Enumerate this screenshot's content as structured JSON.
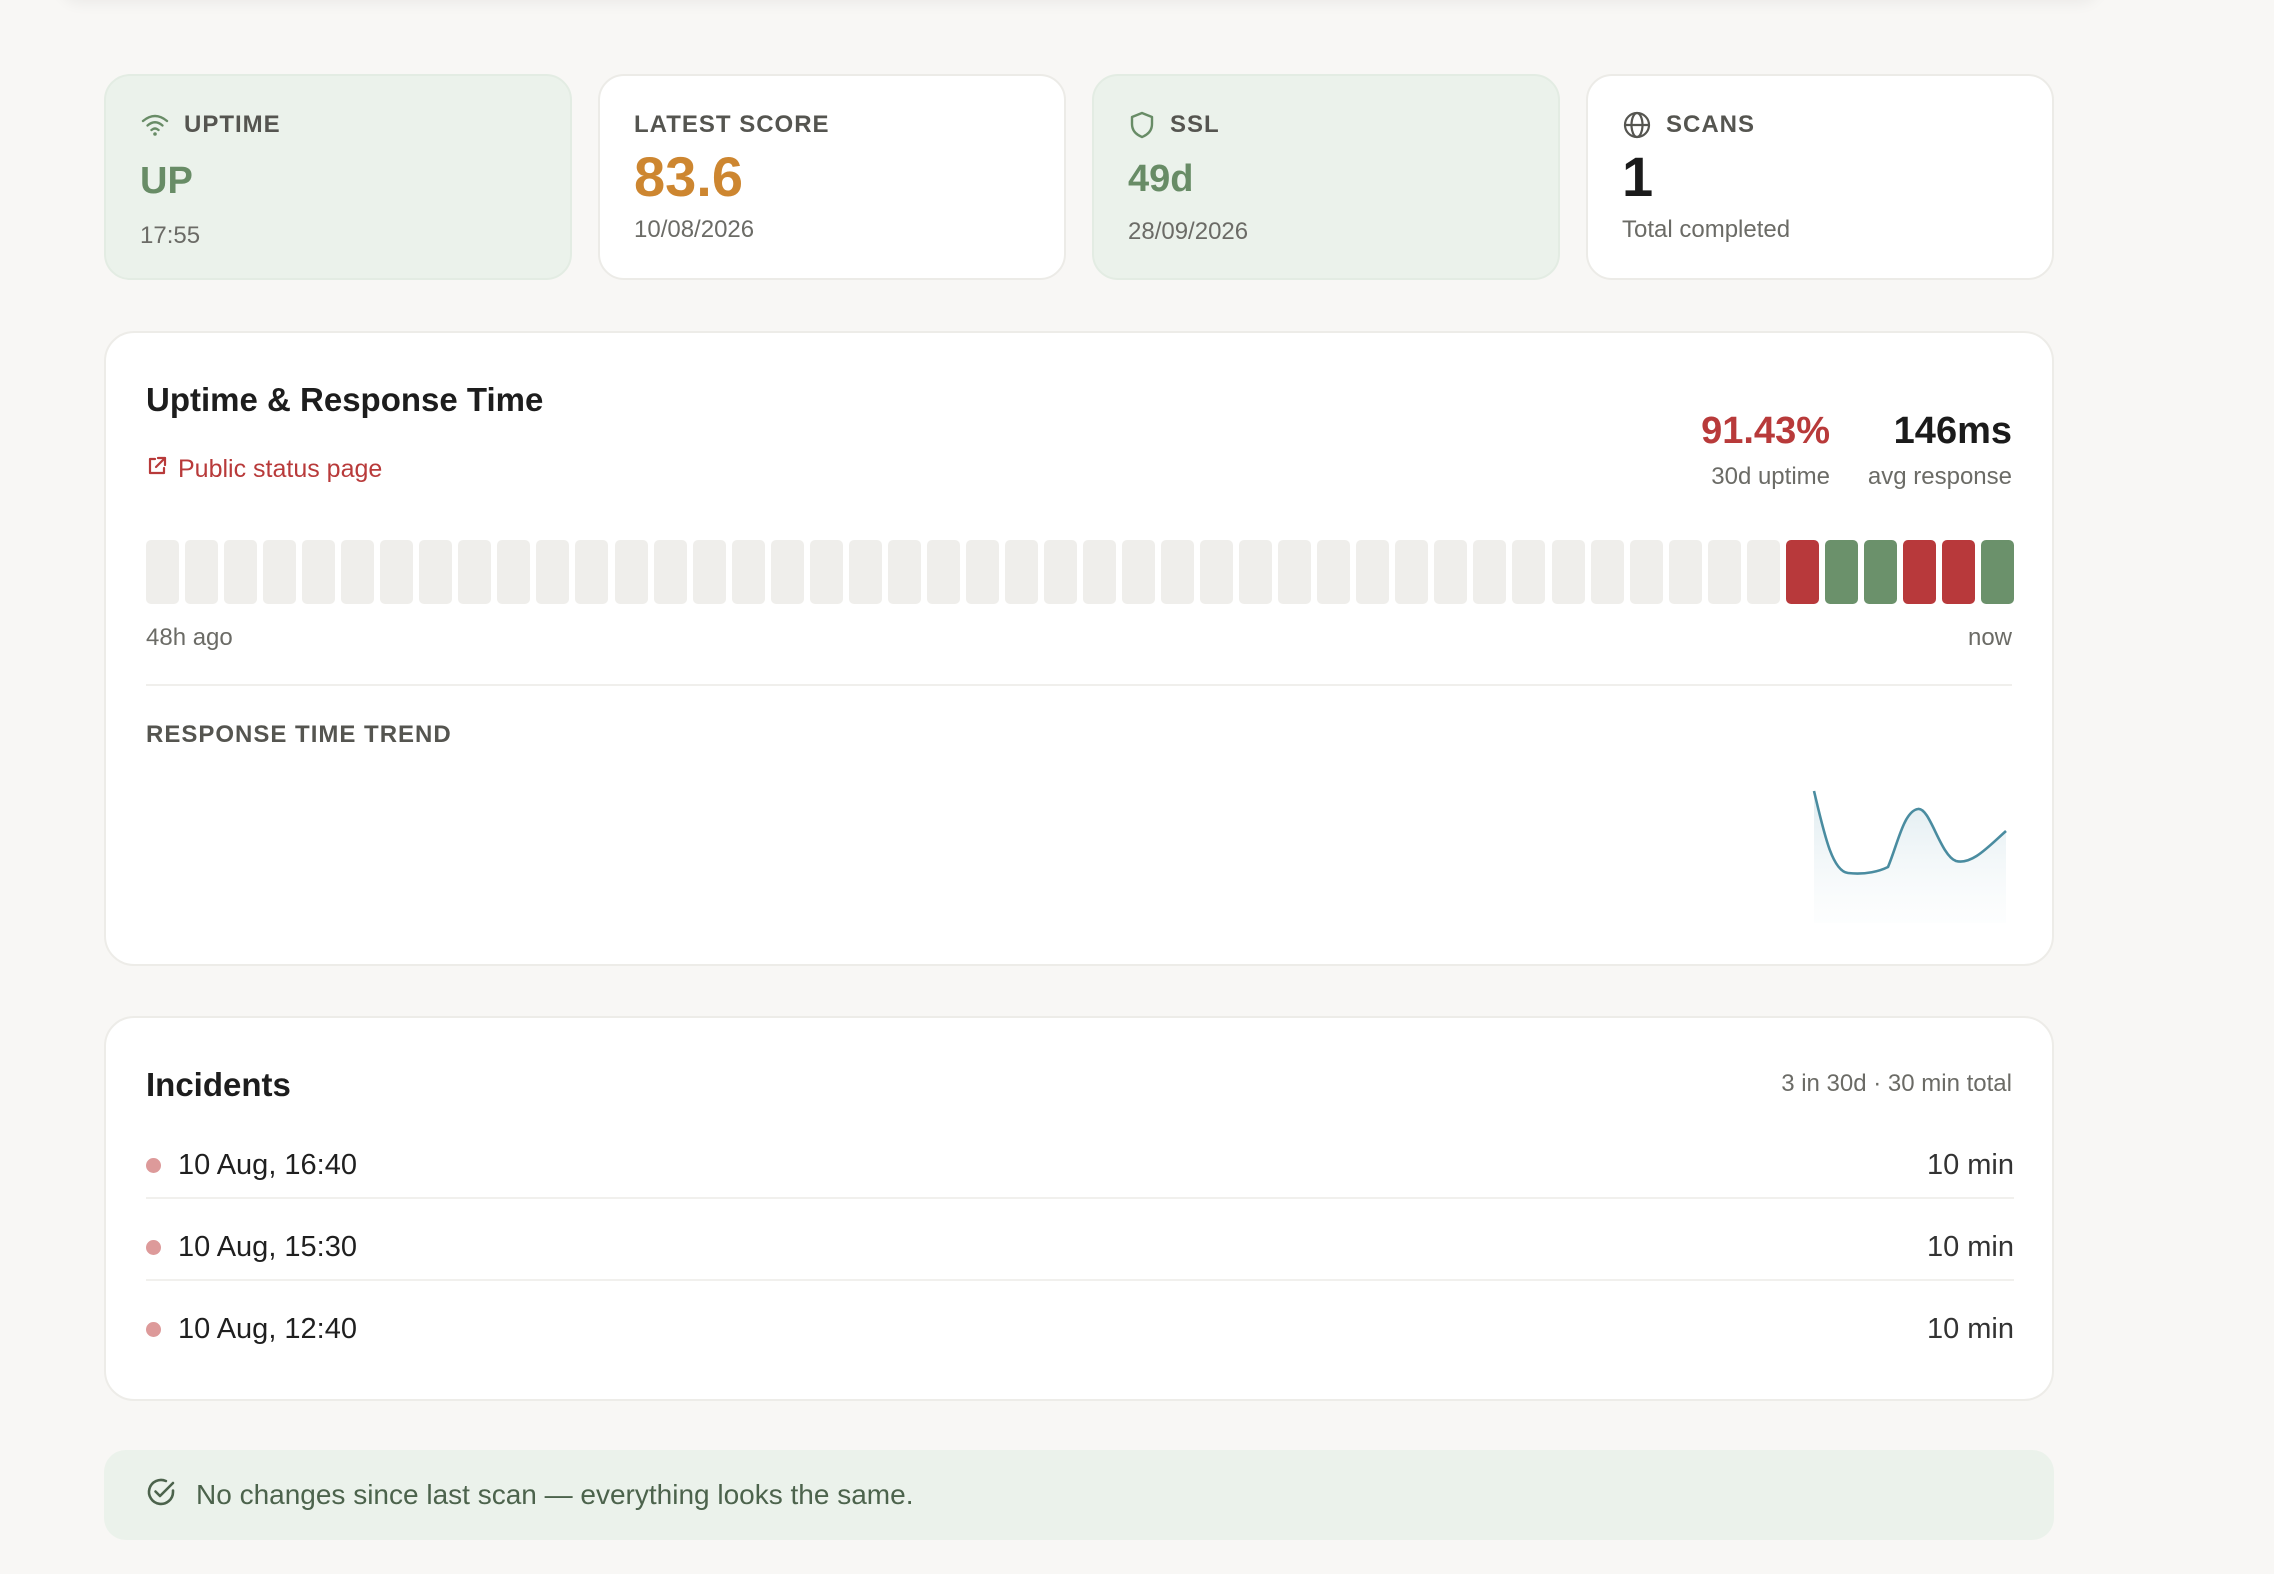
{
  "stats": [
    {
      "label": "UPTIME",
      "value": "UP",
      "sub": "17:55",
      "icon": "wifi-icon"
    },
    {
      "label": "LATEST SCORE",
      "value": "83.6",
      "sub": "10/08/2026"
    },
    {
      "label": "SSL",
      "value": "49d",
      "sub": "28/09/2026",
      "icon": "shield-icon"
    },
    {
      "label": "SCANS",
      "value": "1",
      "sub": "Total completed",
      "icon": "globe-icon"
    }
  ],
  "uptime_panel": {
    "title": "Uptime & Response Time",
    "status_link": "Public status page",
    "uptime_value": "91.43%",
    "uptime_caption": "30d uptime",
    "response_value": "146ms",
    "response_caption": "avg response",
    "range_start": "48h ago",
    "range_end": "now",
    "trend_title": "RESPONSE TIME TREND"
  },
  "uptime_bars": [
    "none",
    "none",
    "none",
    "none",
    "none",
    "none",
    "none",
    "none",
    "none",
    "none",
    "none",
    "none",
    "none",
    "none",
    "none",
    "none",
    "none",
    "none",
    "none",
    "none",
    "none",
    "none",
    "none",
    "none",
    "none",
    "none",
    "none",
    "none",
    "none",
    "none",
    "none",
    "none",
    "none",
    "none",
    "none",
    "none",
    "none",
    "none",
    "none",
    "none",
    "none",
    "none",
    "down",
    "up",
    "up",
    "down",
    "down",
    "up"
  ],
  "incidents": {
    "title": "Incidents",
    "summary": "3 in 30d · 30 min total",
    "items": [
      {
        "time": "10 Aug, 16:40",
        "duration": "10 min"
      },
      {
        "time": "10 Aug, 15:30",
        "duration": "10 min"
      },
      {
        "time": "10 Aug, 12:40",
        "duration": "10 min"
      }
    ]
  },
  "notice": {
    "text": "No changes since last scan — everything looks the same.",
    "icon": "check-circle-icon"
  },
  "colors": {
    "up": "#6b916b",
    "down": "#b8393b",
    "unknown": "#efeeeb",
    "score": "#cd8630",
    "link": "#b83a3a",
    "trend_line": "#4a8ca0"
  }
}
